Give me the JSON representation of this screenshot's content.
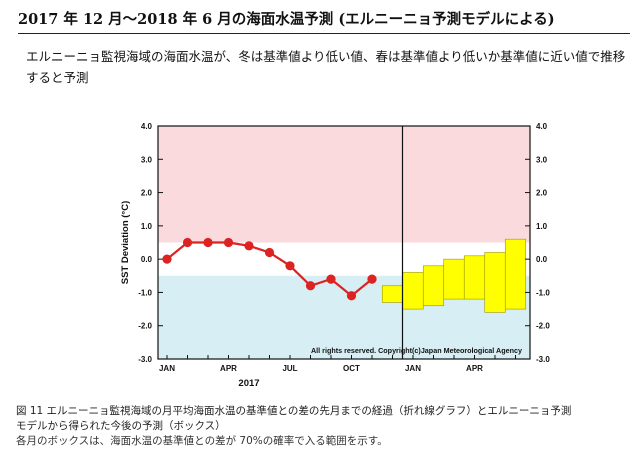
{
  "page": {
    "title": "2017 年 12 月～2018 年 6 月の海面水温予測 (エルニーニョ予測モデルによる)",
    "description": "エルニーニョ監視海域の海面水温が、冬は基準値より低い値、春は基準値より低いか基準値に近い値で推移すると予測",
    "caption_line1": "図 11  エルニーニョ監視海域の月平均海面水温の基準値との差の先月までの経過（折れ線グラフ）とエルニーニョ予測",
    "caption_line2": "モデルから得られた今後の予測（ボックス）",
    "caption_line3": "各月のボックスは、海面水温の基準値との差が 70%の確率で入る範囲を示す。"
  },
  "chart_data": {
    "type": "line",
    "ylabel": "SST Deviation (°C)",
    "xlabel": "2017",
    "ylim": [
      -3.0,
      4.0
    ],
    "yticks": [
      "4.0",
      "3.0",
      "2.0",
      "1.0",
      "0.0",
      "-1.0",
      "-2.0",
      "-3.0"
    ],
    "xticks": [
      {
        "label": "JAN",
        "month_index": 0
      },
      {
        "label": "APR",
        "month_index": 3
      },
      {
        "label": "JUL",
        "month_index": 6
      },
      {
        "label": "OCT",
        "month_index": 9
      },
      {
        "label": "JAN",
        "month_index": 12
      },
      {
        "label": "APR",
        "month_index": 15
      }
    ],
    "copyright": "All rights reserved. Copyright(c)Japan Meteorological Agency",
    "bands": [
      {
        "name": "el-nino-range",
        "from": 0.5,
        "to": 4.0,
        "color": "#fadadd"
      },
      {
        "name": "neutral-range",
        "from": -0.5,
        "to": 0.5,
        "color": "#ffffff"
      },
      {
        "name": "la-nina-range",
        "from": -3.0,
        "to": -0.5,
        "color": "#d7eef4"
      }
    ],
    "series": [
      {
        "month_index": [
          0,
          1,
          2,
          3,
          4,
          5,
          6,
          7,
          8,
          9,
          10
        ],
        "values": [
          0.0,
          0.5,
          0.5,
          0.5,
          0.4,
          0.2,
          -0.2,
          -0.8,
          -0.6,
          -1.1,
          -0.6
        ],
        "color": "#dd2222"
      }
    ],
    "forecast_boxes": [
      {
        "month_index": 11,
        "low": -1.3,
        "high": -0.8
      },
      {
        "month_index": 12,
        "low": -1.5,
        "high": -0.4
      },
      {
        "month_index": 13,
        "low": -1.4,
        "high": -0.2
      },
      {
        "month_index": 14,
        "low": -1.2,
        "high": 0.0
      },
      {
        "month_index": 15,
        "low": -1.2,
        "high": 0.1
      },
      {
        "month_index": 16,
        "low": -1.6,
        "high": 0.2
      },
      {
        "month_index": 17,
        "low": -1.5,
        "high": 0.6
      }
    ],
    "forecast_start_month_index": 11.5,
    "box_color": "#ffff00",
    "grid": false
  }
}
